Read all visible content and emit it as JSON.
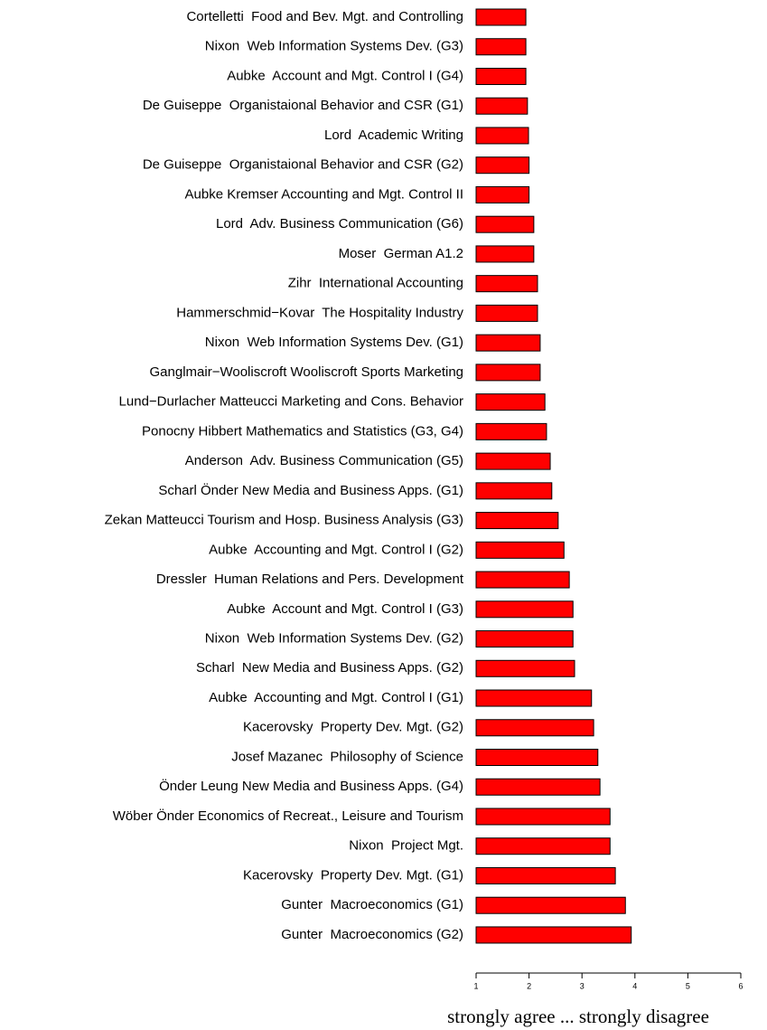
{
  "chart_data": {
    "type": "barh",
    "categories": [
      "Cortelletti  Food and Bev. Mgt. and Controlling",
      "Nixon  Web Information Systems Dev. (G3)",
      "Aubke  Account and Mgt. Control I (G4)",
      "De Guiseppe  Organistaional Behavior and CSR (G1)",
      "Lord  Academic Writing",
      "De Guiseppe  Organistaional Behavior and CSR (G2)",
      "Aubke Kremser Accounting and Mgt. Control II",
      "Lord  Adv. Business Communication (G6)",
      "Moser  German A1.2",
      "Zihr  International Accounting",
      "Hammerschmid−Kovar  The Hospitality Industry",
      "Nixon  Web Information Systems Dev. (G1)",
      "Ganglmair−Wooliscroft Wooliscroft Sports Marketing",
      "Lund−Durlacher Matteucci Marketing and Cons. Behavior",
      "Ponocny Hibbert Mathematics and Statistics (G3, G4)",
      "Anderson  Adv. Business Communication (G5)",
      "Scharl Önder New Media and Business Apps. (G1)",
      "Zekan Matteucci Tourism and Hosp. Business Analysis (G3)",
      "Aubke  Accounting and Mgt. Control I (G2)",
      "Dressler  Human Relations and Pers. Development",
      "Aubke  Account and Mgt. Control I (G3)",
      "Nixon  Web Information Systems Dev. (G2)",
      "Scharl  New Media and Business Apps. (G2)",
      "Aubke  Accounting and Mgt. Control I (G1)",
      "Kacerovsky  Property Dev. Mgt. (G2)",
      "Josef Mazanec  Philosophy of Science",
      "Önder Leung New Media and Business Apps. (G4)",
      "Wöber Önder Economics of Recreat., Leisure and Tourism",
      "Nixon  Project Mgt.",
      "Kacerovsky  Property Dev. Mgt. (G1)",
      "Gunter  Macroeconomics (G1)",
      "Gunter  Macroeconomics (G2)"
    ],
    "values": [
      1.94,
      1.94,
      1.94,
      1.97,
      1.99,
      2.0,
      2.0,
      2.09,
      2.09,
      2.16,
      2.16,
      2.21,
      2.21,
      2.3,
      2.33,
      2.4,
      2.43,
      2.55,
      2.66,
      2.76,
      2.83,
      2.83,
      2.86,
      3.18,
      3.22,
      3.3,
      3.34,
      3.53,
      3.53,
      3.63,
      3.82,
      3.93
    ],
    "color": "#ff0000",
    "xlim": [
      1,
      6
    ],
    "xticks": [
      1,
      2,
      3,
      4,
      5,
      6
    ],
    "xlabel": "strongly agree ... strongly disagree"
  }
}
